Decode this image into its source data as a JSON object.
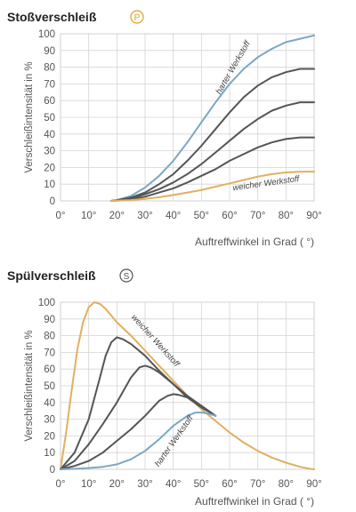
{
  "chart_data": [
    {
      "type": "line",
      "title": "Stoßverschleiß",
      "badge": "P",
      "badge_color": "#e0a020",
      "ylabel": "Verschleißintensität in %",
      "xlabel": "Auftreffwinkel in Grad ( °)",
      "xlim": [
        0,
        90
      ],
      "ylim": [
        0,
        100
      ],
      "xticks": [
        "0°",
        "10°",
        "20°",
        "30°",
        "40°",
        "50°",
        "60°",
        "70°",
        "80°",
        "90°"
      ],
      "yticks": [
        "0",
        "10",
        "20",
        "30",
        "40",
        "50",
        "60",
        "70",
        "80",
        "90",
        "100"
      ],
      "grid": true,
      "annotations": [
        {
          "text": "harter Werkstoff",
          "x": 62,
          "y": 79,
          "angle": -60
        },
        {
          "text": "weicher Werkstoff",
          "x": 73,
          "y": 9,
          "angle": -8
        }
      ],
      "series": [
        {
          "color": "#7ca7c4",
          "x": [
            18,
            20,
            25,
            30,
            35,
            40,
            45,
            50,
            55,
            60,
            65,
            70,
            75,
            80,
            85,
            90
          ],
          "values": [
            0,
            0.5,
            3,
            8,
            15,
            24,
            35,
            47,
            59,
            70,
            79,
            86,
            91,
            95,
            97,
            99
          ]
        },
        {
          "color": "#555555",
          "x": [
            18,
            20,
            25,
            30,
            35,
            40,
            45,
            50,
            55,
            60,
            65,
            70,
            75,
            80,
            85,
            90
          ],
          "values": [
            0,
            0.4,
            2,
            5,
            10,
            16,
            24,
            33,
            43,
            53,
            62,
            69,
            74,
            77,
            79,
            79
          ]
        },
        {
          "color": "#555555",
          "x": [
            18,
            20,
            25,
            30,
            35,
            40,
            45,
            50,
            55,
            60,
            65,
            70,
            75,
            80,
            85,
            90
          ],
          "values": [
            0,
            0.3,
            1.5,
            4,
            7,
            11,
            16,
            22,
            29,
            36,
            43,
            49,
            54,
            57,
            59,
            59
          ]
        },
        {
          "color": "#555555",
          "x": [
            18,
            20,
            25,
            30,
            35,
            40,
            45,
            50,
            55,
            60,
            65,
            70,
            75,
            80,
            85,
            90
          ],
          "values": [
            0,
            0.2,
            1,
            2.5,
            5,
            7.5,
            11,
            15,
            19,
            24,
            28,
            32,
            35,
            37,
            38,
            38
          ]
        },
        {
          "color": "#e0b060",
          "x": [
            18,
            20,
            25,
            30,
            35,
            40,
            45,
            50,
            55,
            60,
            65,
            70,
            75,
            80,
            85,
            90
          ],
          "values": [
            0,
            0.1,
            0.5,
            1.2,
            2.2,
            3.5,
            5,
            6.5,
            8.5,
            10.5,
            12.5,
            14.5,
            16,
            17,
            17.5,
            17.5
          ]
        }
      ]
    },
    {
      "type": "line",
      "title": "Spülverschleiß",
      "badge": "S",
      "badge_color": "#555555",
      "ylabel": "Verschleißintensität in %",
      "xlabel": "Auftreffwinkel in Grad ( °)",
      "xlim": [
        0,
        90
      ],
      "ylim": [
        0,
        100
      ],
      "xticks": [
        "0°",
        "10°",
        "20°",
        "30°",
        "40°",
        "50°",
        "60°",
        "70°",
        "80°",
        "90°"
      ],
      "yticks": [
        "0",
        "10",
        "20",
        "30",
        "40",
        "50",
        "60",
        "70",
        "80",
        "90",
        "100"
      ],
      "grid": true,
      "annotations": [
        {
          "text": "weicher Werkstoff",
          "x": 33,
          "y": 76,
          "angle": 48
        },
        {
          "text": "harter Werkstoff",
          "x": 41,
          "y": 16,
          "angle": -55
        }
      ],
      "series": [
        {
          "color": "#e0b060",
          "x": [
            0,
            2,
            4,
            6,
            8,
            10,
            12,
            14,
            16,
            18,
            20,
            25,
            30,
            35,
            40,
            45,
            50,
            55,
            60,
            65,
            70,
            75,
            80,
            85,
            88,
            90
          ],
          "values": [
            0,
            22,
            48,
            72,
            88,
            97,
            100,
            99,
            96,
            92,
            88,
            80,
            71,
            62,
            53,
            44,
            36,
            29,
            22,
            16,
            11,
            7,
            4,
            1.5,
            0.5,
            0
          ]
        },
        {
          "color": "#555555",
          "x": [
            0,
            5,
            10,
            14,
            16,
            18,
            20,
            22,
            25,
            30,
            35,
            40,
            45,
            50,
            55
          ],
          "values": [
            0,
            10,
            30,
            55,
            68,
            76,
            79,
            78,
            75,
            68,
            59,
            51,
            44,
            38,
            32
          ]
        },
        {
          "color": "#555555",
          "x": [
            0,
            5,
            10,
            15,
            20,
            25,
            28,
            30,
            32,
            35,
            40,
            45,
            50,
            55
          ],
          "values": [
            0,
            5,
            15,
            27,
            40,
            55,
            61,
            62,
            61,
            58,
            51,
            43,
            38,
            32
          ]
        },
        {
          "color": "#555555",
          "x": [
            0,
            5,
            10,
            15,
            20,
            25,
            30,
            35,
            38,
            40,
            42,
            45,
            50,
            55
          ],
          "values": [
            0,
            2,
            5,
            10,
            17,
            24,
            32,
            41,
            44,
            45,
            44.5,
            43,
            37,
            32
          ]
        },
        {
          "color": "#7ca7c4",
          "x": [
            0,
            5,
            10,
            15,
            20,
            25,
            30,
            35,
            40,
            45,
            48,
            50,
            52,
            55
          ],
          "values": [
            0,
            0.3,
            0.8,
            1.5,
            3,
            6,
            11,
            18,
            26,
            32,
            34,
            34,
            33.5,
            32
          ]
        }
      ]
    }
  ]
}
